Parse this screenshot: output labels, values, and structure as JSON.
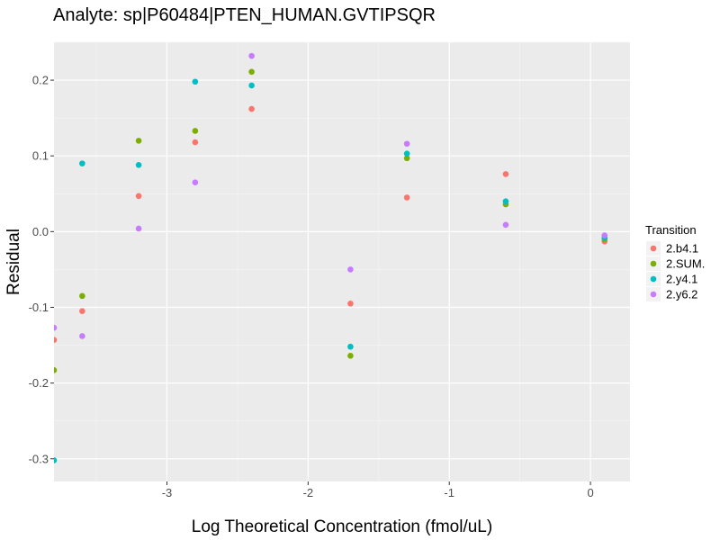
{
  "chart_data": {
    "type": "scatter",
    "title": "Analyte: sp|P60484|PTEN_HUMAN.GVTIPSQR",
    "xlabel": "Log Theoretical Concentration (fmol/uL)",
    "ylabel": "Residual",
    "xlim": [
      -3.8,
      0.28
    ],
    "ylim": [
      -0.33,
      0.25
    ],
    "x_ticks": [
      -3,
      -2,
      -1,
      0
    ],
    "x_tick_labels": [
      "-3",
      "-2",
      "-1",
      "0"
    ],
    "y_ticks": [
      -0.3,
      -0.2,
      -0.1,
      0.0,
      0.1,
      0.2
    ],
    "y_tick_labels": [
      "-0.3",
      "-0.2",
      "-0.1",
      "0.0",
      "0.1",
      "0.2"
    ],
    "grid": true,
    "panel_background": "#ebebeb",
    "legend": {
      "title": "Transition",
      "position": "right"
    },
    "series": [
      {
        "name": "2.b4.1",
        "color": "#F8766D",
        "points": [
          [
            -3.8,
            -0.143
          ],
          [
            -3.6,
            -0.105
          ],
          [
            -3.2,
            0.047
          ],
          [
            -2.8,
            0.118
          ],
          [
            -2.4,
            0.162
          ],
          [
            -1.7,
            -0.095
          ],
          [
            -1.3,
            0.045
          ],
          [
            -0.6,
            0.076
          ],
          [
            0.1,
            -0.013
          ]
        ]
      },
      {
        "name": "2.SUM.",
        "color": "#7CAE00",
        "points": [
          [
            -3.8,
            -0.183
          ],
          [
            -3.6,
            -0.085
          ],
          [
            -3.2,
            0.12
          ],
          [
            -2.8,
            0.133
          ],
          [
            -2.4,
            0.211
          ],
          [
            -1.7,
            -0.164
          ],
          [
            -1.3,
            0.097
          ],
          [
            -0.6,
            0.036
          ],
          [
            0.1,
            -0.01
          ]
        ]
      },
      {
        "name": "2.y4.1",
        "color": "#00BFC4",
        "points": [
          [
            -3.8,
            -0.302
          ],
          [
            -3.6,
            0.09
          ],
          [
            -3.2,
            0.088
          ],
          [
            -2.8,
            0.198
          ],
          [
            -2.4,
            0.193
          ],
          [
            -1.7,
            -0.152
          ],
          [
            -1.3,
            0.103
          ],
          [
            -0.6,
            0.04
          ],
          [
            0.1,
            -0.008
          ]
        ]
      },
      {
        "name": "2.y6.2",
        "color": "#C77CFF",
        "points": [
          [
            -3.8,
            -0.127
          ],
          [
            -3.6,
            -0.138
          ],
          [
            -3.2,
            0.004
          ],
          [
            -2.8,
            0.065
          ],
          [
            -2.4,
            0.232
          ],
          [
            -1.7,
            -0.05
          ],
          [
            -1.3,
            0.116
          ],
          [
            -0.6,
            0.009
          ],
          [
            0.1,
            -0.005
          ]
        ]
      }
    ]
  }
}
